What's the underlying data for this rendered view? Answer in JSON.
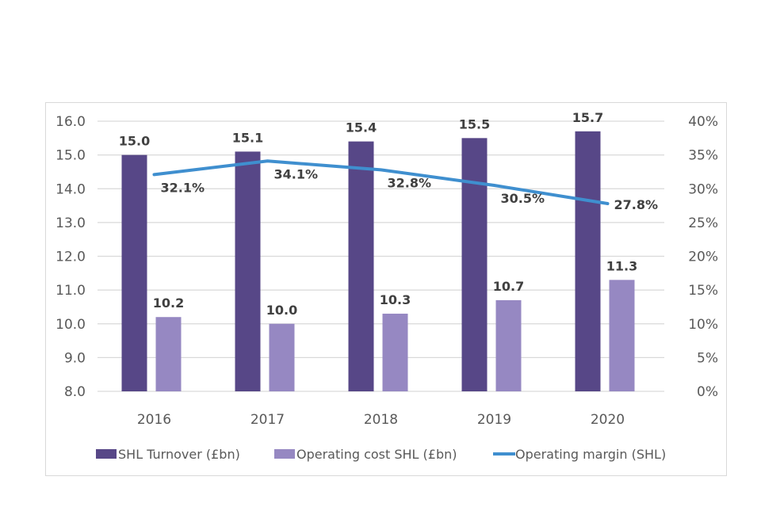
{
  "chart_data": {
    "type": "bar",
    "title": "",
    "categories": [
      "2016",
      "2017",
      "2018",
      "2019",
      "2020"
    ],
    "series": [
      {
        "name": "SHL Turnover (£bn)",
        "type": "bar",
        "axis": "left",
        "color": "#574787",
        "values": [
          15.0,
          15.1,
          15.4,
          15.5,
          15.7
        ],
        "labels": [
          "15.0",
          "15.1",
          "15.4",
          "15.5",
          "15.7"
        ]
      },
      {
        "name": "Operating cost SHL (£bn)",
        "type": "bar",
        "axis": "left",
        "color": "#9688c2",
        "values": [
          10.2,
          10.0,
          10.3,
          10.7,
          11.3
        ],
        "labels": [
          "10.2",
          "10.0",
          "10.3",
          "10.7",
          "11.3"
        ]
      },
      {
        "name": "Operating margin (SHL)",
        "type": "line",
        "axis": "right",
        "color": "#3f8fcf",
        "values": [
          32.1,
          34.1,
          32.8,
          30.5,
          27.8
        ],
        "labels": [
          "32.1%",
          "34.1%",
          "32.8%",
          "30.5%",
          "27.8%"
        ]
      }
    ],
    "left_axis": {
      "ylim": [
        8.0,
        16.0
      ],
      "ticks": [
        "8.0",
        "9.0",
        "10.0",
        "11.0",
        "12.0",
        "13.0",
        "14.0",
        "15.0",
        "16.0"
      ]
    },
    "right_axis": {
      "ylim": [
        0,
        40
      ],
      "ticks": [
        "0%",
        "5%",
        "10%",
        "15%",
        "20%",
        "25%",
        "30%",
        "35%",
        "40%"
      ]
    },
    "xlabel": "",
    "ylabel": "",
    "grid": true,
    "legend_position": "bottom"
  }
}
